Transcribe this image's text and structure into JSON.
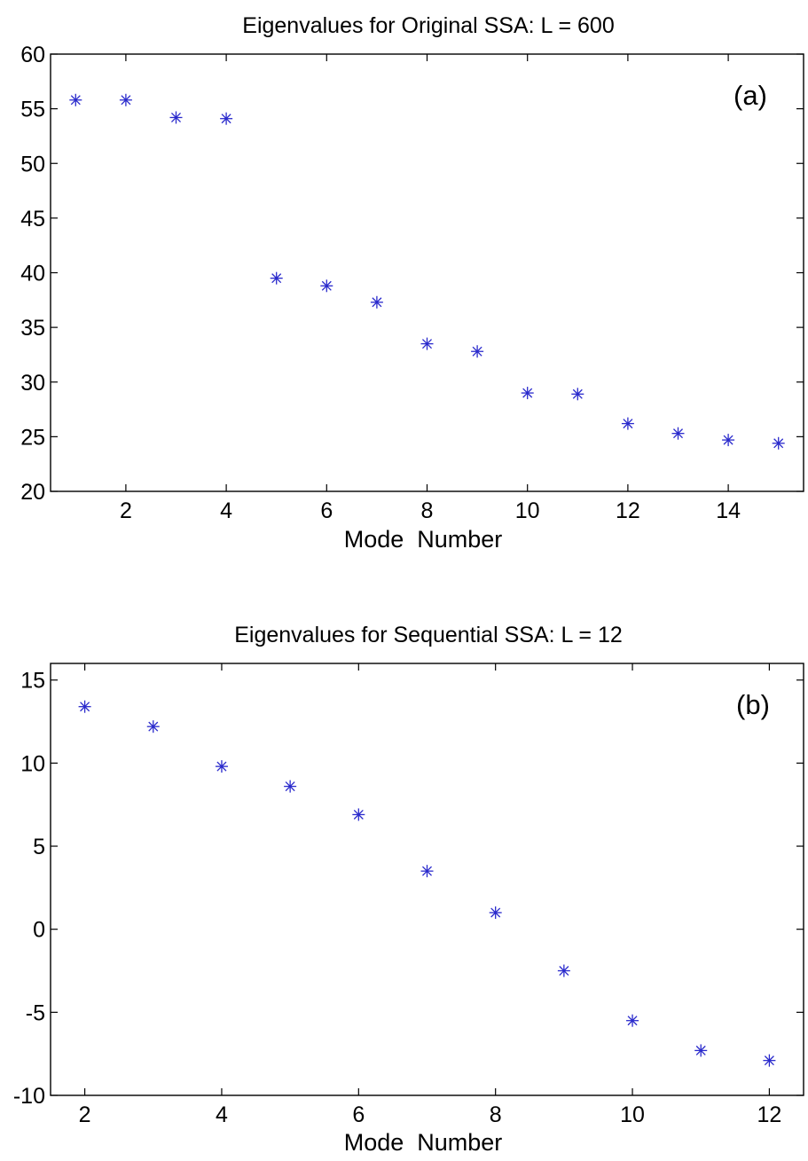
{
  "figure": {
    "marker_color": "#2a2acc",
    "axis_color": "#000000"
  },
  "chart_data": [
    {
      "type": "scatter",
      "title": "Eigenvalues for Original SSA: L = 600",
      "panel_label": "(a)",
      "xlabel": "Mode  Number",
      "ylabel": "",
      "xlim": [
        0.5,
        15.5
      ],
      "ylim": [
        20,
        60
      ],
      "xticks": [
        2,
        4,
        6,
        8,
        10,
        12,
        14
      ],
      "yticks": [
        20,
        25,
        30,
        35,
        40,
        45,
        50,
        55,
        60
      ],
      "marker": "star",
      "grid": false,
      "x": [
        1,
        2,
        3,
        4,
        5,
        6,
        7,
        8,
        9,
        10,
        11,
        12,
        13,
        14,
        15
      ],
      "y": [
        55.8,
        55.8,
        54.2,
        54.1,
        39.5,
        38.8,
        37.3,
        33.5,
        32.8,
        29.0,
        28.9,
        26.2,
        25.3,
        24.7,
        24.4
      ]
    },
    {
      "type": "scatter",
      "title": "Eigenvalues for Sequential SSA: L = 12",
      "panel_label": "(b)",
      "xlabel": "Mode  Number",
      "ylabel": "",
      "xlim": [
        1.5,
        12.5
      ],
      "ylim": [
        -10,
        16
      ],
      "xticks": [
        2,
        4,
        6,
        8,
        10,
        12
      ],
      "yticks": [
        -10,
        -5,
        0,
        5,
        10,
        15
      ],
      "marker": "star",
      "grid": false,
      "x": [
        2,
        3,
        4,
        5,
        6,
        7,
        8,
        9,
        10,
        11,
        12
      ],
      "y": [
        13.4,
        12.2,
        9.8,
        8.6,
        6.9,
        3.5,
        1.0,
        -2.5,
        -5.5,
        -7.3,
        -7.9
      ]
    }
  ]
}
